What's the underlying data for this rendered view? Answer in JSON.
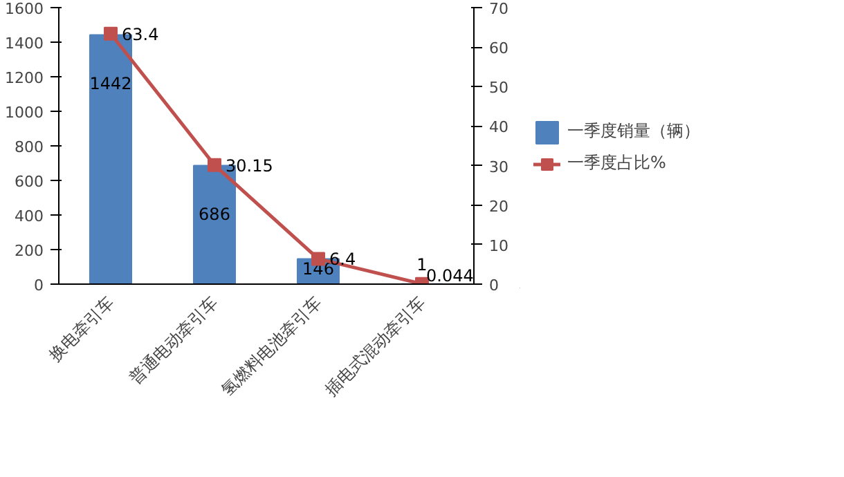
{
  "chart_data": {
    "type": "bar",
    "categories": [
      "换电牵引车",
      "普通电动牵引车",
      "氢燃料电池牵引车",
      "插电式混动牵引车"
    ],
    "series": [
      {
        "name": "一季度销量（辆）",
        "color": "#4f81bd",
        "values": [
          1442,
          686,
          146,
          1
        ]
      },
      {
        "name": "一季度占比%",
        "type": "line",
        "axis": "y2",
        "color": "#c0504d",
        "marker": "square",
        "values": [
          63.4,
          30.15,
          6.4,
          0.044
        ]
      }
    ],
    "ylim": [
      0,
      1600
    ],
    "yticks": [
      0,
      200,
      400,
      600,
      800,
      1000,
      1200,
      1400,
      1600
    ],
    "y2lim": [
      0,
      70
    ],
    "y2ticks": [
      0,
      10,
      20,
      30,
      40,
      50,
      60,
      70
    ],
    "data_labels": true,
    "legend": "right",
    "grid": false
  }
}
